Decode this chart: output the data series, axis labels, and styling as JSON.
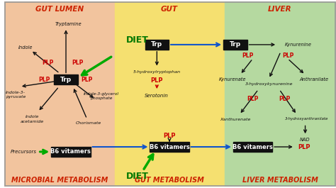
{
  "bg_left": "#F2C49E",
  "bg_mid": "#F5E070",
  "bg_right": "#B5D9A0",
  "title_left": "GUT LUMEN",
  "title_mid": "GUT",
  "title_right": "LIVER",
  "footer_left": "MICROBIAL METABOLISM",
  "footer_mid": "GUT METABOLISM",
  "footer_right": "LIVER METABOLISM",
  "arrow_black": "#111111",
  "arrow_green": "#00aa00",
  "arrow_blue": "#1155cc",
  "plp_color": "#cc0000",
  "diet_color": "#007700",
  "title_color": "#cc2200",
  "footer_color": "#cc2200"
}
